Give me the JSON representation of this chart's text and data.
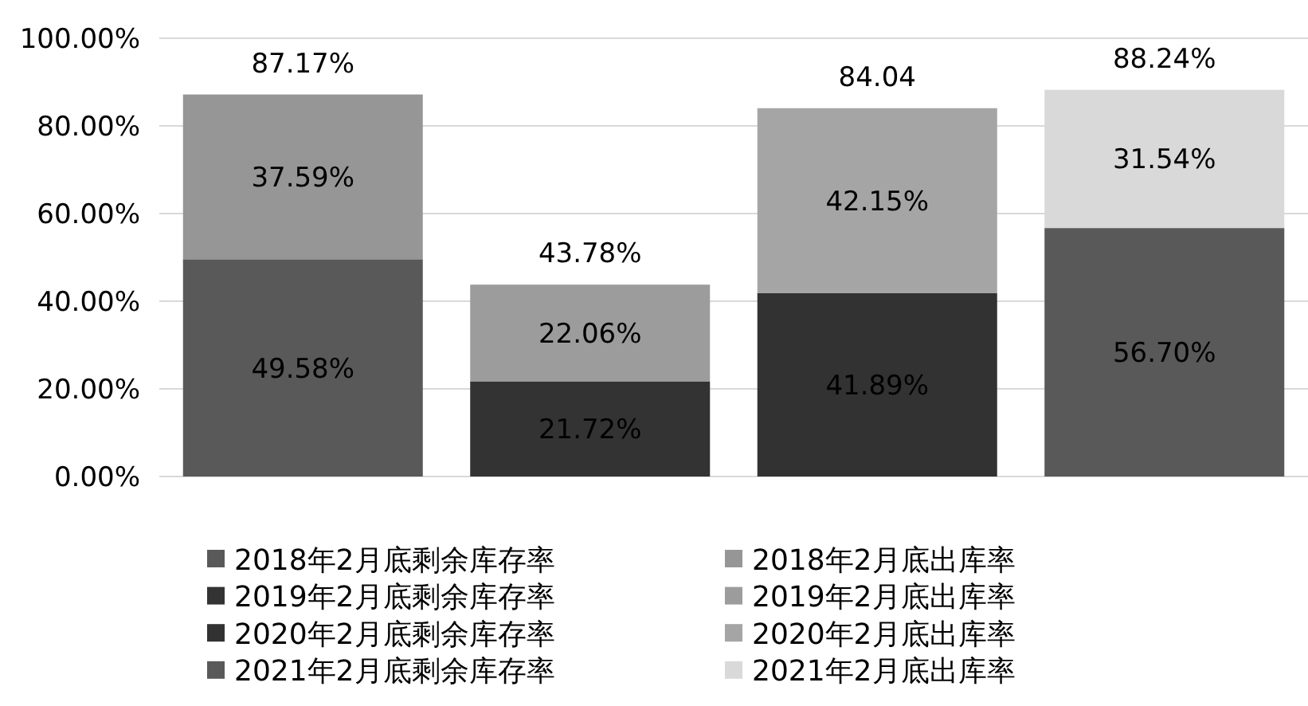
{
  "chart_data": {
    "type": "bar",
    "stacked": true,
    "categories": [
      null,
      null,
      null,
      null
    ],
    "ylim": [
      0,
      100
    ],
    "yticks": [
      {
        "value": 0,
        "label": "0.00%"
      },
      {
        "value": 20,
        "label": "20.00%"
      },
      {
        "value": 40,
        "label": "40.00%"
      },
      {
        "value": 60,
        "label": "60.00%"
      },
      {
        "value": 80,
        "label": "80.00%"
      },
      {
        "value": 100,
        "label": "100.00%"
      }
    ],
    "grid": "y",
    "legend": "bottom",
    "totals": [
      "87.17%",
      "43.78%",
      "84.04",
      "88.24%"
    ],
    "series": [
      {
        "name": "2018年2月底剩余库存率",
        "color": "#595959",
        "values": [
          49.58,
          null,
          null,
          null
        ],
        "value_labels": [
          "49.58%",
          null,
          null,
          null
        ]
      },
      {
        "name": "2018年2月底出库率",
        "color": "#969696",
        "values": [
          37.59,
          null,
          null,
          null
        ],
        "value_labels": [
          "37.59%",
          null,
          null,
          null
        ]
      },
      {
        "name": "2019年2月底剩余库存率",
        "color": "#333333",
        "values": [
          null,
          21.72,
          null,
          null
        ],
        "value_labels": [
          null,
          "21.72%",
          null,
          null
        ]
      },
      {
        "name": "2019年2月底出库率",
        "color": "#9c9c9c",
        "values": [
          null,
          22.06,
          null,
          null
        ],
        "value_labels": [
          null,
          "22.06%",
          null,
          null
        ]
      },
      {
        "name": "2020年2月底剩余库存率",
        "color": "#323232",
        "values": [
          null,
          null,
          41.89,
          null
        ],
        "value_labels": [
          null,
          null,
          "41.89%",
          null
        ]
      },
      {
        "name": "2020年2月底出库率",
        "color": "#a5a5a5",
        "values": [
          null,
          null,
          42.15,
          null
        ],
        "value_labels": [
          null,
          null,
          "42.15%",
          null
        ]
      },
      {
        "name": "2021年2月底剩余库存率",
        "color": "#595959",
        "values": [
          null,
          null,
          null,
          56.7
        ],
        "value_labels": [
          null,
          null,
          null,
          "56.70%"
        ]
      },
      {
        "name": "2021年2月底出库率",
        "color": "#d9d9d9",
        "values": [
          null,
          null,
          null,
          31.54
        ],
        "value_labels": [
          null,
          null,
          null,
          "31.54%"
        ]
      }
    ]
  }
}
